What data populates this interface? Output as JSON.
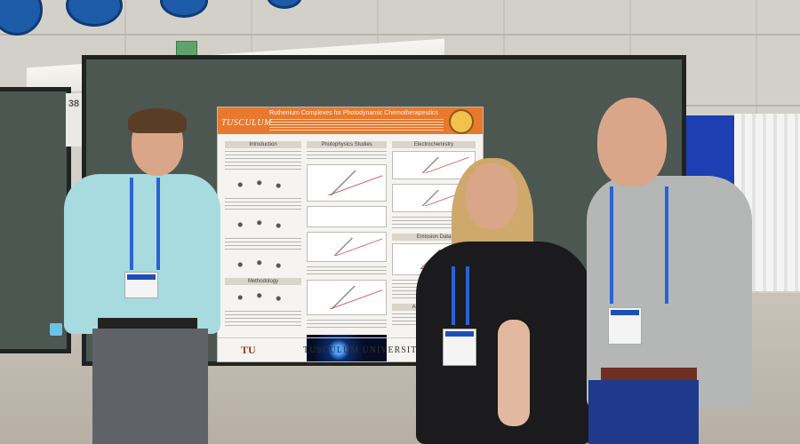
{
  "scene": {
    "booth_number": "38",
    "poster": {
      "brand": "TUSCULUM",
      "title": "Ruthenium Complexes for Photodynamic Chemotherapeutics",
      "sections": {
        "introduction": "Introduction",
        "methodology": "Methodology",
        "photophysics": "Photophysics Studies",
        "electrochemistry": "Electrochemistry",
        "emission": "Emission Data",
        "acknowledgments": "Acknowledgments"
      },
      "footer_logo": "TU",
      "footer_name": "TUSCULUM UNIVERSITY"
    },
    "colors": {
      "poster_header": "#e8792e",
      "board": "#4d5751",
      "lanyard": "#2a62d8",
      "blue_drape": "#1d3fb3"
    }
  }
}
